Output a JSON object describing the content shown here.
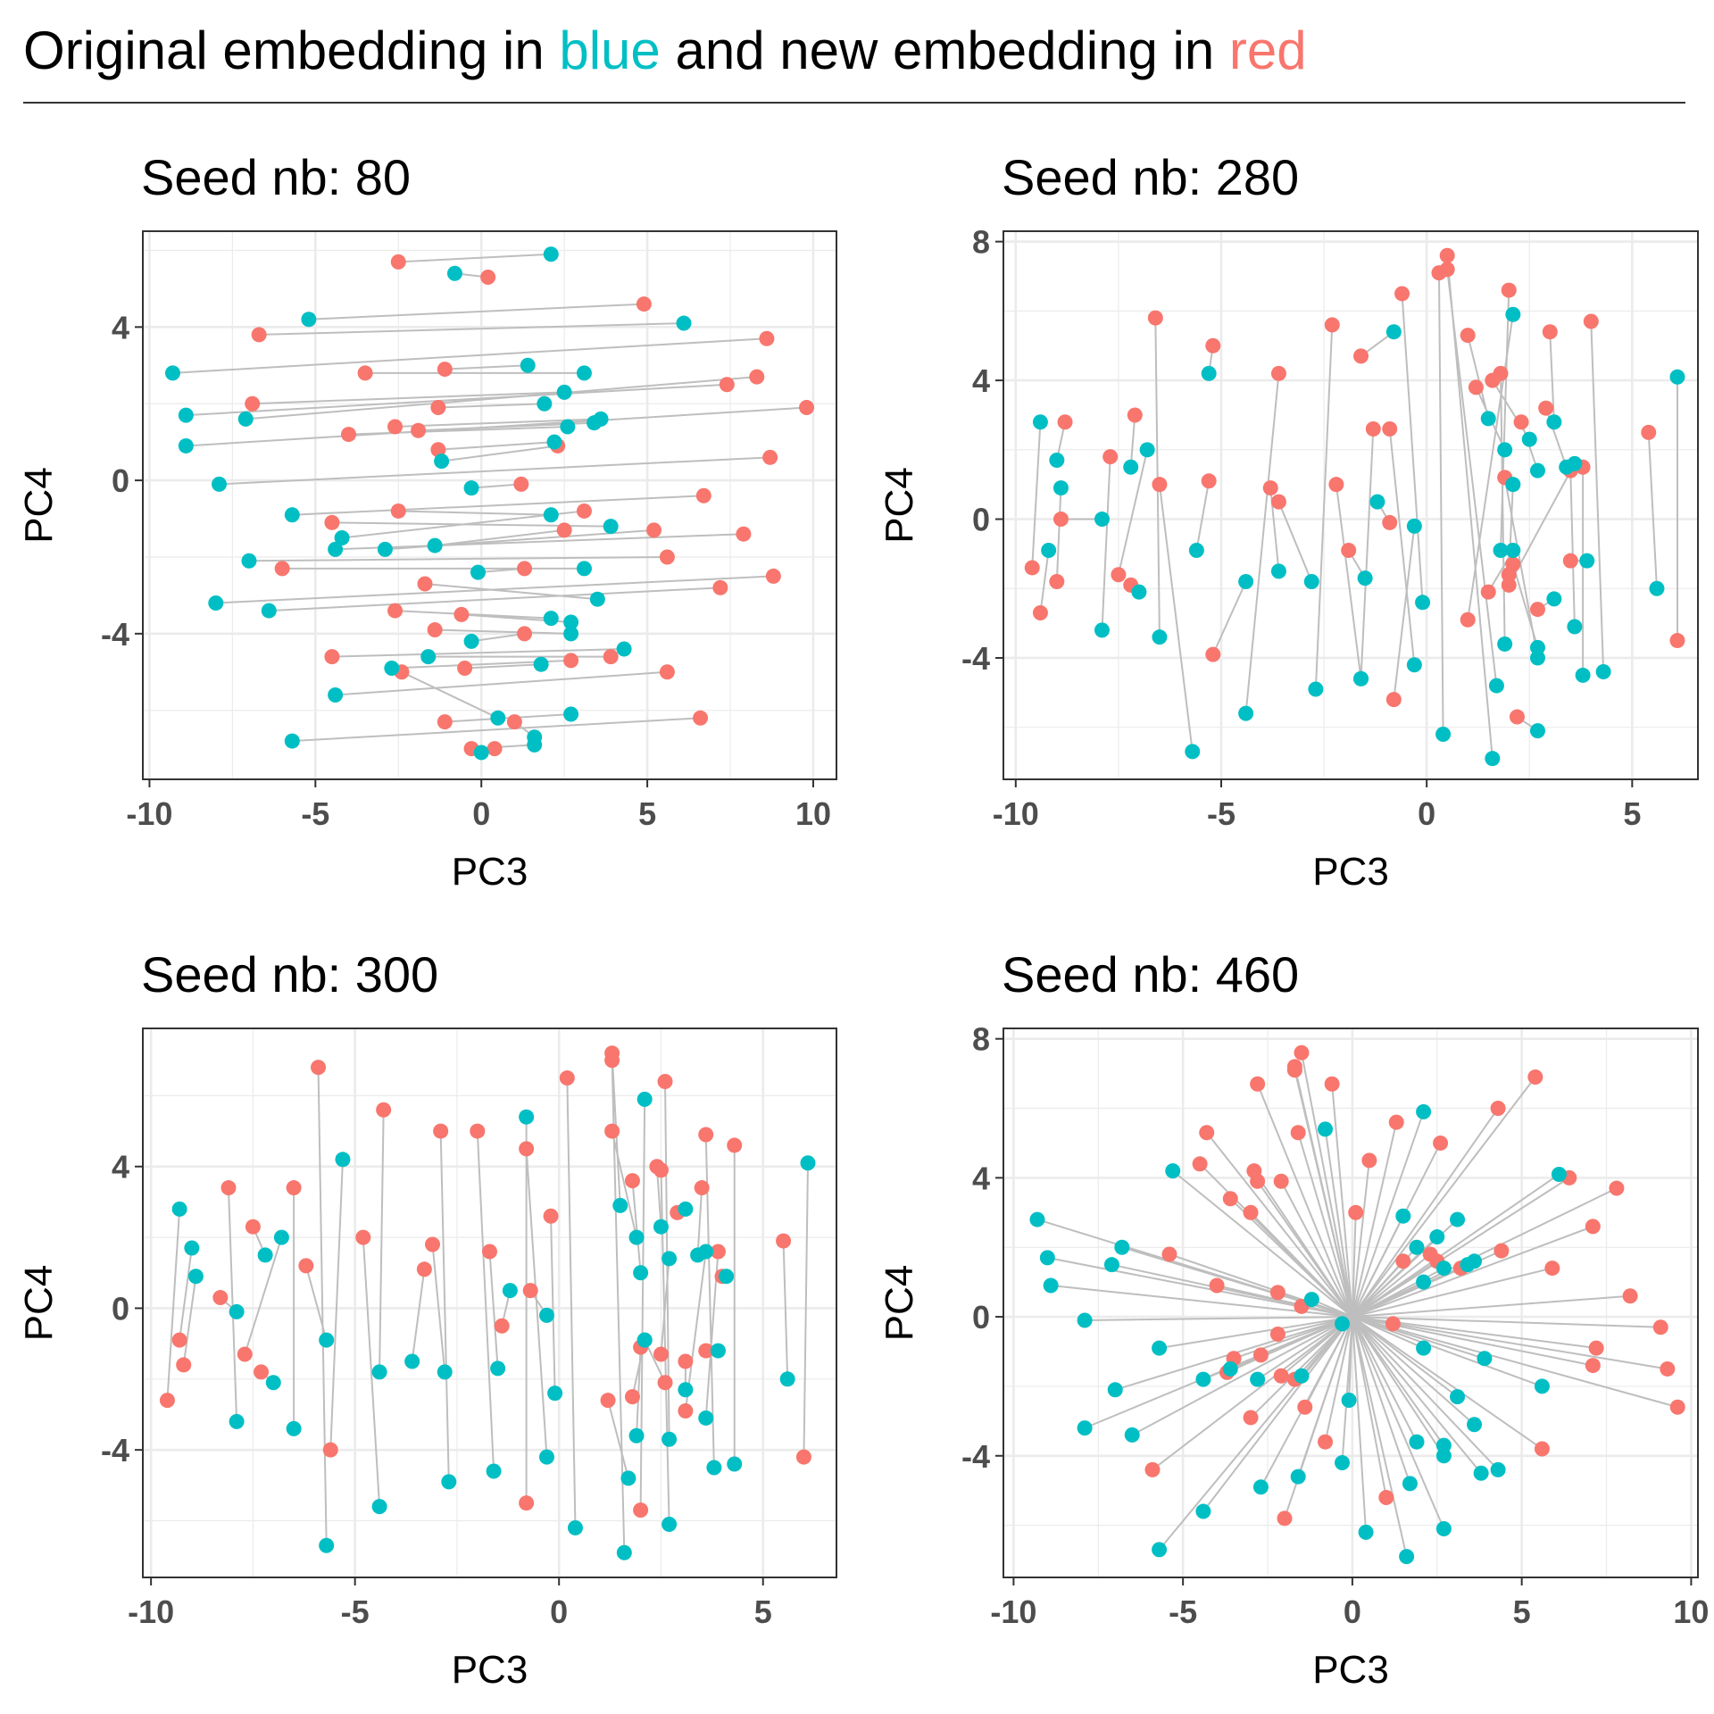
{
  "title": {
    "prefix": "Original embedding in ",
    "blue_word": "blue",
    "middle": " and new embedding in ",
    "red_word": "red"
  },
  "colors": {
    "original": "#00BFC4",
    "new": "#F8766D",
    "segment": "#BEBEBE",
    "grid": "#EBEBEB",
    "frame": "#333333"
  },
  "chart_data": [
    {
      "type": "scatter",
      "title": "Seed nb: 80",
      "xlabel": "PC3",
      "ylabel": "PC4",
      "xlim": [
        -10.2,
        10.7
      ],
      "ylim": [
        -7.8,
        6.5
      ],
      "xticks": [
        -10,
        -5,
        0,
        5,
        10
      ],
      "yticks": [
        -4,
        0,
        4
      ],
      "grid": true,
      "series": [
        {
          "name": "Original embedding",
          "color": "#00BFC4"
        },
        {
          "name": "New embedding",
          "color": "#F8766D"
        }
      ],
      "pairs": [
        [
          2.1,
          5.9,
          -2.5,
          5.7
        ],
        [
          -0.8,
          5.4,
          0.2,
          5.3
        ],
        [
          -5.2,
          4.2,
          4.9,
          4.6
        ],
        [
          6.1,
          4.1,
          -6.7,
          3.8
        ],
        [
          -9.3,
          2.8,
          8.6,
          3.7
        ],
        [
          1.4,
          3.0,
          -1.1,
          2.9
        ],
        [
          3.1,
          2.8,
          -3.5,
          2.8
        ],
        [
          -8.9,
          1.7,
          7.4,
          2.5
        ],
        [
          2.5,
          2.3,
          -6.9,
          2.0
        ],
        [
          -7.1,
          1.6,
          8.3,
          2.7
        ],
        [
          1.9,
          2.0,
          -1.3,
          1.9
        ],
        [
          3.6,
          1.6,
          -2.6,
          1.4
        ],
        [
          -8.9,
          0.9,
          9.8,
          1.9
        ],
        [
          2.6,
          1.4,
          -4.0,
          1.2
        ],
        [
          3.4,
          1.5,
          -1.9,
          1.3
        ],
        [
          2.2,
          1.0,
          -1.3,
          0.8
        ],
        [
          -1.2,
          0.5,
          2.3,
          0.9
        ],
        [
          -7.9,
          -0.1,
          8.7,
          0.6
        ],
        [
          -0.3,
          -0.2,
          1.2,
          -0.1
        ],
        [
          -5.7,
          -0.9,
          6.7,
          -0.4
        ],
        [
          2.1,
          -0.9,
          -2.5,
          -0.8
        ],
        [
          -4.2,
          -1.5,
          3.1,
          -0.8
        ],
        [
          -4.4,
          -1.8,
          7.9,
          -1.4
        ],
        [
          3.9,
          -1.2,
          -4.5,
          -1.1
        ],
        [
          -2.9,
          -1.8,
          5.2,
          -1.3
        ],
        [
          -1.4,
          -1.7,
          2.5,
          -1.3
        ],
        [
          -7.0,
          -2.1,
          5.6,
          -2.0
        ],
        [
          3.1,
          -2.3,
          -6.0,
          -2.3
        ],
        [
          -0.1,
          -2.4,
          1.3,
          -2.3
        ],
        [
          -8.0,
          -3.2,
          8.8,
          -2.5
        ],
        [
          3.5,
          -3.1,
          -1.7,
          -2.7
        ],
        [
          -6.4,
          -3.4,
          7.2,
          -2.8
        ],
        [
          2.1,
          -3.6,
          -2.6,
          -3.4
        ],
        [
          2.7,
          -3.7,
          -0.6,
          -3.5
        ],
        [
          2.7,
          -4.0,
          -1.4,
          -3.9
        ],
        [
          -0.3,
          -4.2,
          1.3,
          -4.0
        ],
        [
          4.3,
          -4.4,
          -4.5,
          -4.6
        ],
        [
          -1.6,
          -4.6,
          3.9,
          -4.6
        ],
        [
          -4.4,
          -5.6,
          5.6,
          -5.0
        ],
        [
          -2.7,
          -4.9,
          2.7,
          -4.7
        ],
        [
          1.8,
          -4.8,
          -0.5,
          -4.9
        ],
        [
          0.5,
          -6.2,
          -2.4,
          -5.0
        ],
        [
          -5.7,
          -6.8,
          6.6,
          -6.2
        ],
        [
          2.7,
          -6.1,
          -1.1,
          -6.3
        ],
        [
          1.6,
          -6.9,
          -0.3,
          -7.0
        ],
        [
          1.6,
          -6.7,
          1.0,
          -6.3
        ],
        [
          0.0,
          -7.1,
          0.4,
          -7.0
        ]
      ]
    },
    {
      "type": "scatter",
      "title": "Seed nb: 280",
      "xlabel": "PC3",
      "ylabel": "PC4",
      "xlim": [
        -10.3,
        6.6
      ],
      "ylim": [
        -7.5,
        8.3
      ],
      "xticks": [
        -10,
        -5,
        0,
        5
      ],
      "yticks": [
        -4,
        0,
        4,
        8
      ],
      "grid": true,
      "series": [
        {
          "name": "Original embedding",
          "color": "#00BFC4"
        },
        {
          "name": "New embedding",
          "color": "#F8766D"
        }
      ],
      "pairs": [
        [
          -9.4,
          2.8,
          -9.6,
          -1.4
        ],
        [
          -9.0,
          1.7,
          -8.8,
          2.8
        ],
        [
          -8.9,
          0.9,
          -9.0,
          -1.8
        ],
        [
          -9.2,
          -0.9,
          -9.4,
          -2.7
        ],
        [
          -7.9,
          0.0,
          -8.9,
          0.0
        ],
        [
          -7.9,
          -3.2,
          -7.7,
          1.8
        ],
        [
          -7.2,
          1.5,
          -7.1,
          3.0
        ],
        [
          -6.8,
          2.0,
          -7.5,
          -1.6
        ],
        [
          -7.0,
          -2.1,
          -7.2,
          -1.9
        ],
        [
          -6.5,
          -3.4,
          -6.6,
          5.8
        ],
        [
          -5.7,
          -6.7,
          -6.5,
          1.0
        ],
        [
          -5.3,
          4.2,
          -5.2,
          5.0
        ],
        [
          -5.6,
          -0.9,
          -5.3,
          1.1
        ],
        [
          -4.4,
          -1.8,
          -5.2,
          -3.9
        ],
        [
          -4.4,
          -5.6,
          -3.6,
          4.2
        ],
        [
          -3.6,
          -1.5,
          -3.8,
          0.9
        ],
        [
          -2.8,
          -1.8,
          -3.6,
          0.5
        ],
        [
          -2.7,
          -4.9,
          -2.3,
          5.6
        ],
        [
          -1.6,
          -4.6,
          -2.2,
          1.0
        ],
        [
          -1.5,
          -1.7,
          -1.9,
          -0.9
        ],
        [
          -0.8,
          5.4,
          -1.6,
          4.7
        ],
        [
          -1.6,
          -4.6,
          -1.3,
          2.6
        ],
        [
          -1.2,
          0.5,
          -0.9,
          -0.1
        ],
        [
          -0.1,
          -2.4,
          -0.6,
          6.5
        ],
        [
          -0.3,
          -0.2,
          -0.8,
          -5.2
        ],
        [
          -0.3,
          -4.2,
          -0.9,
          2.6
        ],
        [
          0.4,
          -6.2,
          0.3,
          7.1
        ],
        [
          1.6,
          -6.9,
          0.5,
          7.6
        ],
        [
          1.7,
          -4.8,
          0.5,
          7.2
        ],
        [
          1.5,
          2.9,
          1.0,
          5.3
        ],
        [
          1.9,
          2.0,
          1.2,
          3.8
        ],
        [
          1.8,
          -0.9,
          2.0,
          6.6
        ],
        [
          2.1,
          5.9,
          1.0,
          -2.9
        ],
        [
          2.1,
          -0.9,
          1.5,
          -2.1
        ],
        [
          2.5,
          2.3,
          1.6,
          4.0
        ],
        [
          1.9,
          -3.6,
          1.8,
          4.2
        ],
        [
          2.7,
          -6.1,
          2.2,
          -5.7
        ],
        [
          2.1,
          1.0,
          2.0,
          -1.6
        ],
        [
          2.7,
          1.4,
          2.3,
          2.8
        ],
        [
          2.7,
          -4.0,
          1.9,
          1.2
        ],
        [
          3.1,
          2.8,
          3.0,
          5.4
        ],
        [
          3.4,
          1.5,
          2.9,
          3.2
        ],
        [
          3.1,
          -2.3,
          2.7,
          -2.6
        ],
        [
          2.7,
          -3.7,
          2.1,
          -1.3
        ],
        [
          3.6,
          1.6,
          2.0,
          -1.9
        ],
        [
          3.8,
          -4.5,
          3.8,
          1.5
        ],
        [
          3.9,
          -1.2,
          3.5,
          -1.2
        ],
        [
          3.6,
          -3.1,
          3.5,
          1.4
        ],
        [
          4.3,
          -4.4,
          4.0,
          5.7
        ],
        [
          5.6,
          -2.0,
          5.4,
          2.5
        ],
        [
          6.1,
          4.1,
          6.1,
          -3.5
        ]
      ]
    },
    {
      "type": "scatter",
      "title": "Seed nb: 300",
      "xlabel": "PC3",
      "ylabel": "PC4",
      "xlim": [
        -10.2,
        6.8
      ],
      "ylim": [
        -7.6,
        7.9
      ],
      "xticks": [
        -10,
        -5,
        0,
        5
      ],
      "yticks": [
        -4,
        0,
        4
      ],
      "grid": true,
      "series": [
        {
          "name": "Original embedding",
          "color": "#00BFC4"
        },
        {
          "name": "New embedding",
          "color": "#F8766D"
        }
      ],
      "pairs": [
        [
          -9.3,
          2.8,
          -9.6,
          -2.6
        ],
        [
          -9.0,
          1.7,
          -9.3,
          -0.9
        ],
        [
          -8.9,
          0.9,
          -9.2,
          -1.6
        ],
        [
          -7.9,
          -0.1,
          -8.3,
          0.3
        ],
        [
          -7.9,
          -3.2,
          -8.1,
          3.4
        ],
        [
          -7.2,
          1.5,
          -7.5,
          2.3
        ],
        [
          -6.8,
          2.0,
          -7.7,
          -1.3
        ],
        [
          -7.0,
          -2.1,
          -7.3,
          -1.8
        ],
        [
          -6.5,
          -3.4,
          -6.5,
          3.4
        ],
        [
          -5.7,
          -6.7,
          -5.9,
          6.8
        ],
        [
          -5.7,
          -0.9,
          -6.2,
          1.2
        ],
        [
          -5.3,
          4.2,
          -5.6,
          -4.0
        ],
        [
          -4.4,
          -1.8,
          -4.3,
          5.6
        ],
        [
          -4.4,
          -5.6,
          -4.8,
          2.0
        ],
        [
          -3.6,
          -1.5,
          -3.3,
          1.1
        ],
        [
          -2.8,
          -1.8,
          -3.1,
          1.8
        ],
        [
          -2.7,
          -4.9,
          -2.9,
          5.0
        ],
        [
          -1.6,
          -4.6,
          -2.0,
          5.0
        ],
        [
          -1.5,
          -1.7,
          -1.7,
          1.6
        ],
        [
          -1.2,
          0.5,
          -1.4,
          -0.5
        ],
        [
          -0.8,
          5.4,
          -0.8,
          -5.5
        ],
        [
          -0.3,
          -0.2,
          -0.7,
          0.5
        ],
        [
          -0.3,
          -4.2,
          -0.8,
          4.5
        ],
        [
          -0.1,
          -2.4,
          -0.2,
          2.6
        ],
        [
          0.4,
          -6.2,
          0.2,
          6.5
        ],
        [
          1.5,
          2.9,
          1.3,
          7.2
        ],
        [
          1.6,
          -6.9,
          1.3,
          7.0
        ],
        [
          1.7,
          -4.8,
          1.2,
          -2.6
        ],
        [
          1.9,
          2.0,
          1.3,
          5.0
        ],
        [
          2.1,
          5.9,
          2.0,
          -5.7
        ],
        [
          2.1,
          -0.9,
          1.8,
          -2.5
        ],
        [
          2.0,
          1.0,
          1.8,
          3.6
        ],
        [
          2.5,
          2.3,
          2.4,
          4.0
        ],
        [
          1.9,
          -3.6,
          2.0,
          -1.1
        ],
        [
          2.7,
          -6.1,
          2.5,
          3.9
        ],
        [
          2.7,
          -3.7,
          2.6,
          6.4
        ],
        [
          2.7,
          1.4,
          2.5,
          -1.3
        ],
        [
          2.1,
          -0.9,
          2.6,
          -2.1
        ],
        [
          3.1,
          2.8,
          2.9,
          2.7
        ],
        [
          3.1,
          -2.3,
          3.1,
          -1.5
        ],
        [
          3.6,
          1.6,
          3.1,
          -2.9
        ],
        [
          3.4,
          1.5,
          3.5,
          3.4
        ],
        [
          3.8,
          -4.5,
          3.6,
          4.9
        ],
        [
          3.9,
          -1.2,
          3.6,
          -1.2
        ],
        [
          3.6,
          -3.1,
          3.9,
          1.6
        ],
        [
          4.3,
          -4.4,
          4.3,
          4.6
        ],
        [
          4.1,
          0.9,
          4.0,
          0.9
        ],
        [
          5.6,
          -2.0,
          5.5,
          1.9
        ],
        [
          6.1,
          4.1,
          6.0,
          -4.2
        ]
      ]
    },
    {
      "type": "scatter",
      "title": "Seed nb: 460",
      "xlabel": "PC3",
      "ylabel": "PC4",
      "xlim": [
        -10.3,
        10.2
      ],
      "ylim": [
        -7.5,
        8.3
      ],
      "xticks": [
        -10,
        -5,
        0,
        5,
        10
      ],
      "yticks": [
        -4,
        0,
        4,
        8
      ],
      "grid": true,
      "series": [
        {
          "name": "Original embedding",
          "color": "#00BFC4"
        },
        {
          "name": "New embedding",
          "color": "#F8766D"
        }
      ],
      "center": [
        0,
        0
      ],
      "points_original": [
        [
          -9.3,
          2.8
        ],
        [
          -9.0,
          1.7
        ],
        [
          -8.9,
          0.9
        ],
        [
          -7.9,
          -0.1
        ],
        [
          -7.9,
          -3.2
        ],
        [
          -7.1,
          1.5
        ],
        [
          -6.8,
          2.0
        ],
        [
          -7.0,
          -2.1
        ],
        [
          -6.5,
          -3.4
        ],
        [
          -5.3,
          4.2
        ],
        [
          -5.7,
          -0.9
        ],
        [
          -5.7,
          -6.7
        ],
        [
          -4.4,
          -1.8
        ],
        [
          -4.4,
          -5.6
        ],
        [
          -3.6,
          -1.5
        ],
        [
          -2.8,
          -1.8
        ],
        [
          -2.7,
          -4.9
        ],
        [
          -1.6,
          -4.6
        ],
        [
          -1.5,
          -1.7
        ],
        [
          -0.8,
          5.4
        ],
        [
          -1.2,
          0.5
        ],
        [
          -0.3,
          -0.2
        ],
        [
          -0.3,
          -4.2
        ],
        [
          -0.1,
          -2.4
        ],
        [
          0.4,
          -6.2
        ],
        [
          1.6,
          -6.9
        ],
        [
          1.7,
          -4.8
        ],
        [
          1.5,
          2.9
        ],
        [
          1.9,
          2.0
        ],
        [
          2.1,
          5.9
        ],
        [
          2.1,
          -0.9
        ],
        [
          2.5,
          2.3
        ],
        [
          1.9,
          -3.6
        ],
        [
          2.7,
          -6.1
        ],
        [
          2.7,
          -3.7
        ],
        [
          2.7,
          -4.0
        ],
        [
          2.1,
          1.0
        ],
        [
          2.7,
          1.4
        ],
        [
          3.1,
          2.8
        ],
        [
          3.1,
          -2.3
        ],
        [
          3.6,
          1.6
        ],
        [
          3.4,
          1.5
        ],
        [
          3.8,
          -4.5
        ],
        [
          3.9,
          -1.2
        ],
        [
          3.6,
          -3.1
        ],
        [
          4.3,
          -4.4
        ],
        [
          5.6,
          -2.0
        ],
        [
          6.1,
          4.1
        ]
      ],
      "points_new": [
        [
          -5.9,
          -4.4
        ],
        [
          -5.4,
          1.8
        ],
        [
          -4.5,
          4.4
        ],
        [
          -4.3,
          5.3
        ],
        [
          -3.6,
          3.4
        ],
        [
          -4.0,
          0.9
        ],
        [
          -3.5,
          -1.2
        ],
        [
          -3.7,
          -1.6
        ],
        [
          -2.9,
          4.2
        ],
        [
          -2.8,
          3.9
        ],
        [
          -3.0,
          3.0
        ],
        [
          -2.8,
          6.7
        ],
        [
          -3.0,
          -2.9
        ],
        [
          -2.7,
          -1.1
        ],
        [
          -2.1,
          3.9
        ],
        [
          -2.2,
          0.7
        ],
        [
          -2.2,
          -0.5
        ],
        [
          -2.1,
          -1.7
        ],
        [
          -1.7,
          -1.8
        ],
        [
          -1.4,
          -2.6
        ],
        [
          -1.7,
          7.2
        ],
        [
          -1.5,
          7.6
        ],
        [
          -1.6,
          5.3
        ],
        [
          -1.5,
          0.3
        ],
        [
          -1.7,
          7.1
        ],
        [
          -2.0,
          -5.8
        ],
        [
          -0.6,
          6.7
        ],
        [
          -0.8,
          -3.6
        ],
        [
          0.1,
          3.0
        ],
        [
          0.5,
          4.5
        ],
        [
          1.2,
          -0.2
        ],
        [
          1.0,
          -5.2
        ],
        [
          1.3,
          5.6
        ],
        [
          1.5,
          1.6
        ],
        [
          2.3,
          1.8
        ],
        [
          2.6,
          5.0
        ],
        [
          2.5,
          1.6
        ],
        [
          3.2,
          1.4
        ],
        [
          4.4,
          1.9
        ],
        [
          4.3,
          6.0
        ],
        [
          5.4,
          6.9
        ],
        [
          5.9,
          1.4
        ],
        [
          6.4,
          4.0
        ],
        [
          7.1,
          2.6
        ],
        [
          7.8,
          3.7
        ],
        [
          8.2,
          0.6
        ],
        [
          7.2,
          -0.9
        ],
        [
          7.1,
          -1.4
        ],
        [
          9.1,
          -0.3
        ],
        [
          9.3,
          -1.5
        ],
        [
          9.6,
          -2.6
        ],
        [
          5.6,
          -3.8
        ]
      ]
    }
  ]
}
